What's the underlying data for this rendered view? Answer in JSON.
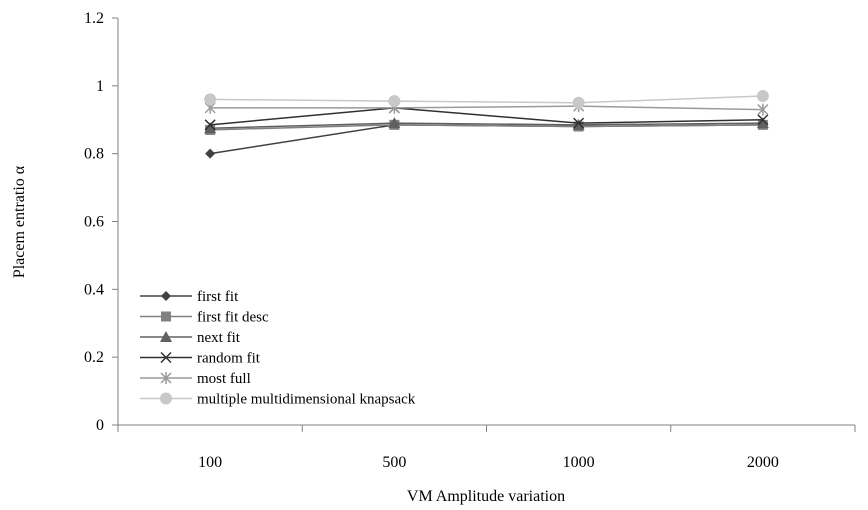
{
  "chart_data": {
    "type": "line",
    "categories": [
      "100",
      "500",
      "1000",
      "2000"
    ],
    "xlabel": "VM Amplitude variation",
    "ylabel": "Placem entratio α",
    "ylim": [
      0,
      1.2
    ],
    "yticks": [
      "0",
      "0.2",
      "0.4",
      "0.6",
      "0.8",
      "1",
      "1.2"
    ],
    "grid": false,
    "legend_position": "bottom-left",
    "series": [
      {
        "name": "first fit",
        "marker": "diamond",
        "color": "#404040",
        "values": [
          0.8,
          0.885,
          0.88,
          0.885
        ]
      },
      {
        "name": "first fit desc",
        "marker": "square",
        "color": "#808080",
        "values": [
          0.87,
          0.885,
          0.88,
          0.885
        ]
      },
      {
        "name": "next fit",
        "marker": "triangle",
        "color": "#606060",
        "values": [
          0.875,
          0.89,
          0.885,
          0.89
        ]
      },
      {
        "name": "random fit",
        "marker": "x",
        "color": "#303030",
        "values": [
          0.885,
          0.935,
          0.89,
          0.9
        ]
      },
      {
        "name": "most full",
        "marker": "star",
        "color": "#9a9a9a",
        "values": [
          0.935,
          0.935,
          0.94,
          0.93
        ]
      },
      {
        "name": "multiple multidimensional knapsack",
        "marker": "circle",
        "color": "#c8c8c8",
        "values": [
          0.96,
          0.955,
          0.95,
          0.97
        ]
      }
    ]
  }
}
